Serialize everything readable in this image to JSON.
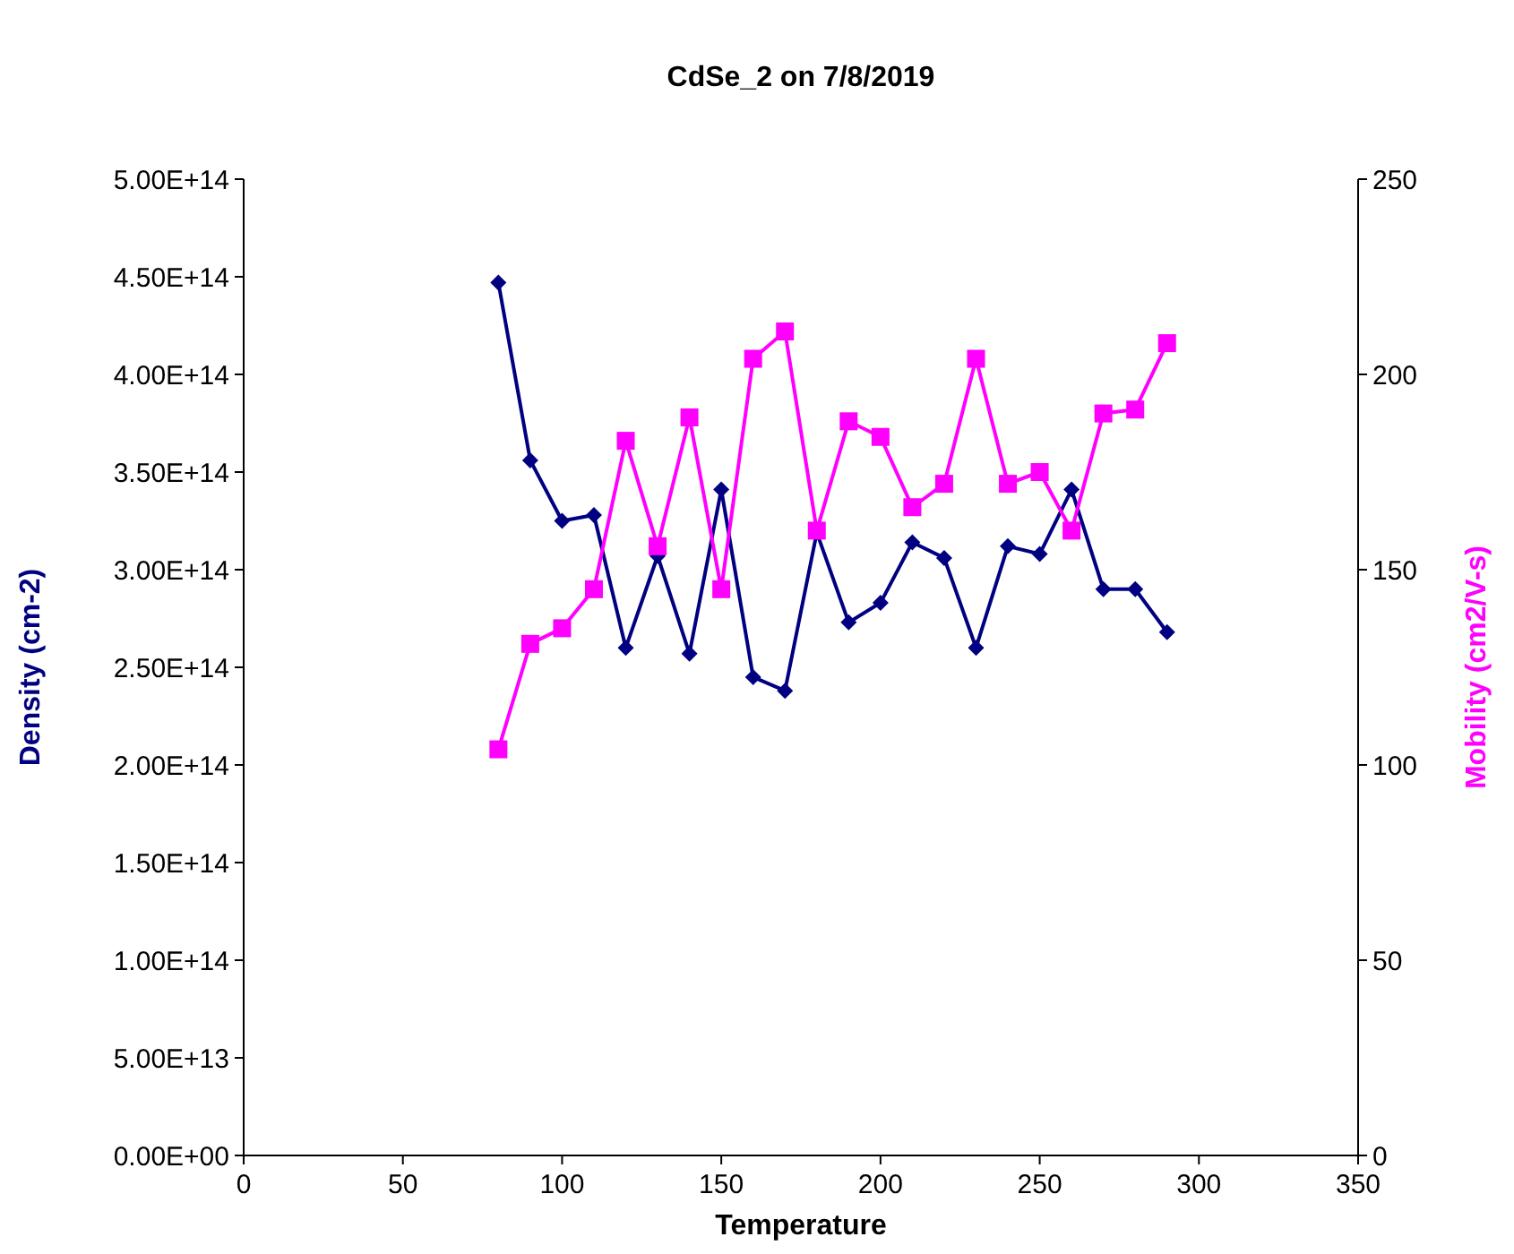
{
  "chart_data": {
    "type": "line",
    "title": "CdSe_2 on 7/8/2019",
    "xlabel": "Temperature",
    "ylabel": "Density (cm-2)",
    "y2label": "Mobility (cm2/V-s)",
    "x": [
      80,
      90,
      100,
      110,
      120,
      130,
      140,
      150,
      160,
      170,
      180,
      190,
      200,
      210,
      220,
      230,
      240,
      250,
      260,
      270,
      280,
      290
    ],
    "series": [
      {
        "color": "#000080",
        "marker": "diamond",
        "values": [
          447000000000000.0,
          356000000000000.0,
          325000000000000.0,
          328000000000000.0,
          260000000000000.0,
          307000000000000.0,
          257000000000000.0,
          341000000000000.0,
          245000000000000.0,
          238000000000000.0,
          319000000000000.0,
          273000000000000.0,
          283000000000000.0,
          314000000000000.0,
          306000000000000.0,
          260000000000000.0,
          312000000000000.0,
          308000000000000.0,
          341000000000000.0,
          290000000000000.0,
          290000000000000.0,
          268000000000000.0
        ]
      },
      {
        "color": "#ff00ff",
        "marker": "square",
        "axis": "y2",
        "values": [
          104,
          131,
          135,
          145,
          183,
          156,
          189,
          145,
          204,
          211,
          160,
          188,
          184,
          166,
          172,
          204,
          172,
          175,
          160,
          190,
          191,
          208
        ]
      }
    ],
    "xlim": [
      0,
      350
    ],
    "xticks": [
      0,
      50,
      100,
      150,
      200,
      250,
      300,
      350
    ],
    "ylim": [
      0,
      500000000000000.0
    ],
    "yticks": [
      {
        "value": 0,
        "label": "0.00E+00"
      },
      {
        "value": 50000000000000.0,
        "label": "5.00E+13"
      },
      {
        "value": 100000000000000.0,
        "label": "1.00E+14"
      },
      {
        "value": 150000000000000.0,
        "label": "1.50E+14"
      },
      {
        "value": 200000000000000.0,
        "label": "2.00E+14"
      },
      {
        "value": 250000000000000.0,
        "label": "2.50E+14"
      },
      {
        "value": 300000000000000.0,
        "label": "3.00E+14"
      },
      {
        "value": 350000000000000.0,
        "label": "3.50E+14"
      },
      {
        "value": 400000000000000.0,
        "label": "4.00E+14"
      },
      {
        "value": 450000000000000.0,
        "label": "4.50E+14"
      },
      {
        "value": 500000000000000.0,
        "label": "5.00E+14"
      }
    ],
    "y2lim": [
      0,
      250
    ],
    "y2ticks": [
      0,
      50,
      100,
      150,
      200,
      250
    ],
    "grid": false,
    "line_style": "solid"
  }
}
